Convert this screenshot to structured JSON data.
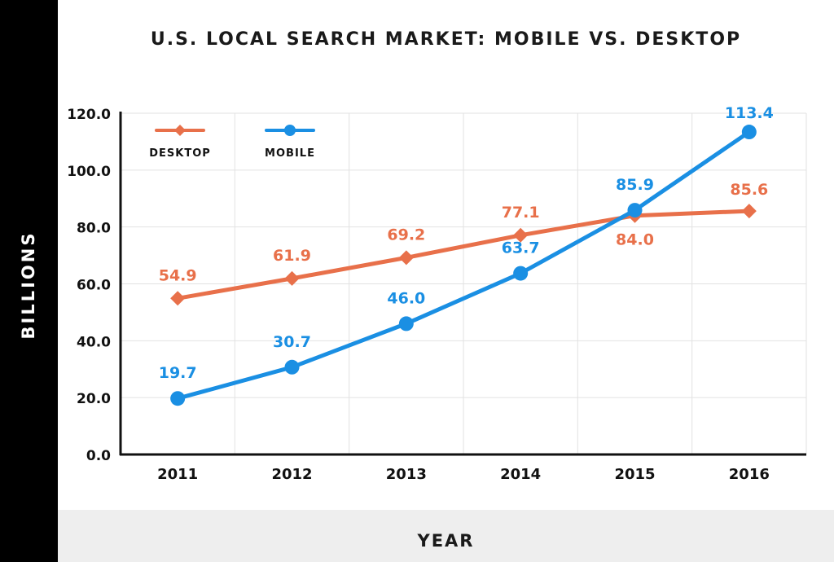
{
  "title": "U.S. LOCAL SEARCH MARKET: MOBILE VS. DESKTOP",
  "colors": {
    "desktop": "#e8704a",
    "mobile": "#1a8fe3",
    "axis": "#111111",
    "grid": "#e2e2e2",
    "sidebar": "#000000",
    "footer": "#eeeeee"
  },
  "chart_data": {
    "type": "line",
    "title": "U.S. LOCAL SEARCH MARKET: MOBILE VS. DESKTOP",
    "xlabel": "YEAR",
    "ylabel": "BILLIONS",
    "categories": [
      "2011",
      "2012",
      "2013",
      "2014",
      "2015",
      "2016"
    ],
    "ylim": [
      0,
      120
    ],
    "yticks": [
      "0.0",
      "20.0",
      "40.0",
      "60.0",
      "80.0",
      "100.0",
      "120.0"
    ],
    "grid": true,
    "legend": "top-left",
    "series": [
      {
        "name": "DESKTOP",
        "values": [
          54.9,
          61.9,
          69.2,
          77.1,
          84.0,
          85.6
        ],
        "labels": [
          "54.9",
          "61.9",
          "69.2",
          "77.1",
          "84.0",
          "85.6"
        ],
        "marker": "diamond",
        "color": "#e8704a"
      },
      {
        "name": "MOBILE",
        "values": [
          19.7,
          30.7,
          46.0,
          63.7,
          85.9,
          113.4
        ],
        "labels": [
          "19.7",
          "30.7",
          "46.0",
          "63.7",
          "85.9",
          "113.4"
        ],
        "marker": "circle",
        "color": "#1a8fe3"
      }
    ]
  }
}
